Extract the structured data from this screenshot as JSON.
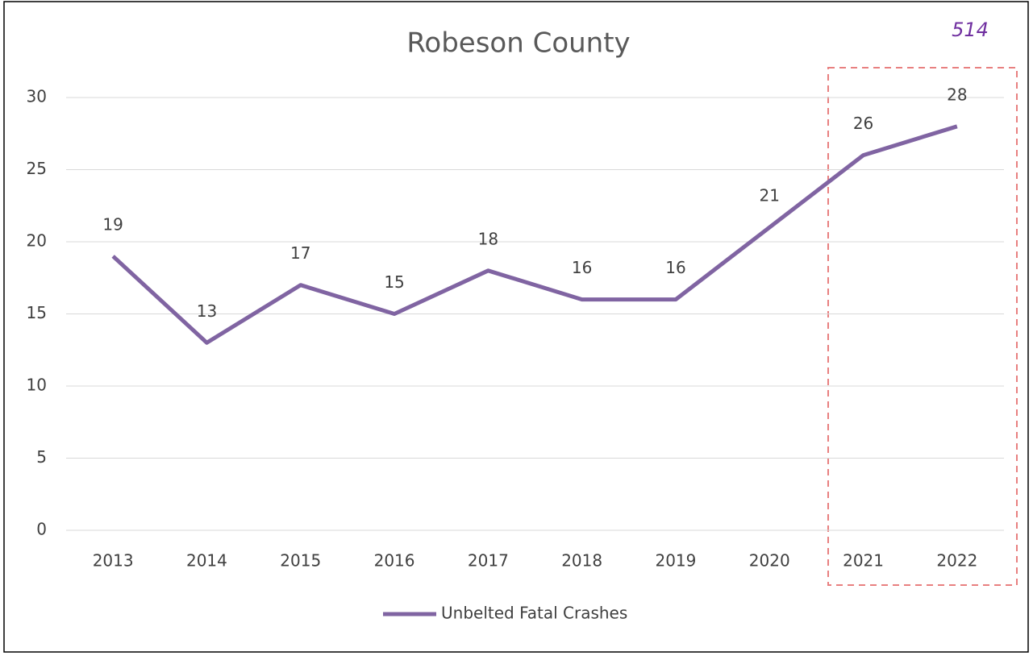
{
  "chart_data": {
    "type": "line",
    "title": "Robeson County",
    "annotation": "514",
    "categories": [
      "2013",
      "2014",
      "2015",
      "2016",
      "2017",
      "2018",
      "2019",
      "2020",
      "2021",
      "2022"
    ],
    "series": [
      {
        "name": "Unbelted Fatal Crashes",
        "color": "#8064a2",
        "values": [
          19,
          13,
          17,
          15,
          18,
          16,
          16,
          21,
          26,
          28
        ]
      }
    ],
    "ylim": [
      0,
      30
    ],
    "yticks": [
      0,
      5,
      10,
      15,
      20,
      25,
      30
    ],
    "grid": true,
    "legend": "bottom"
  }
}
